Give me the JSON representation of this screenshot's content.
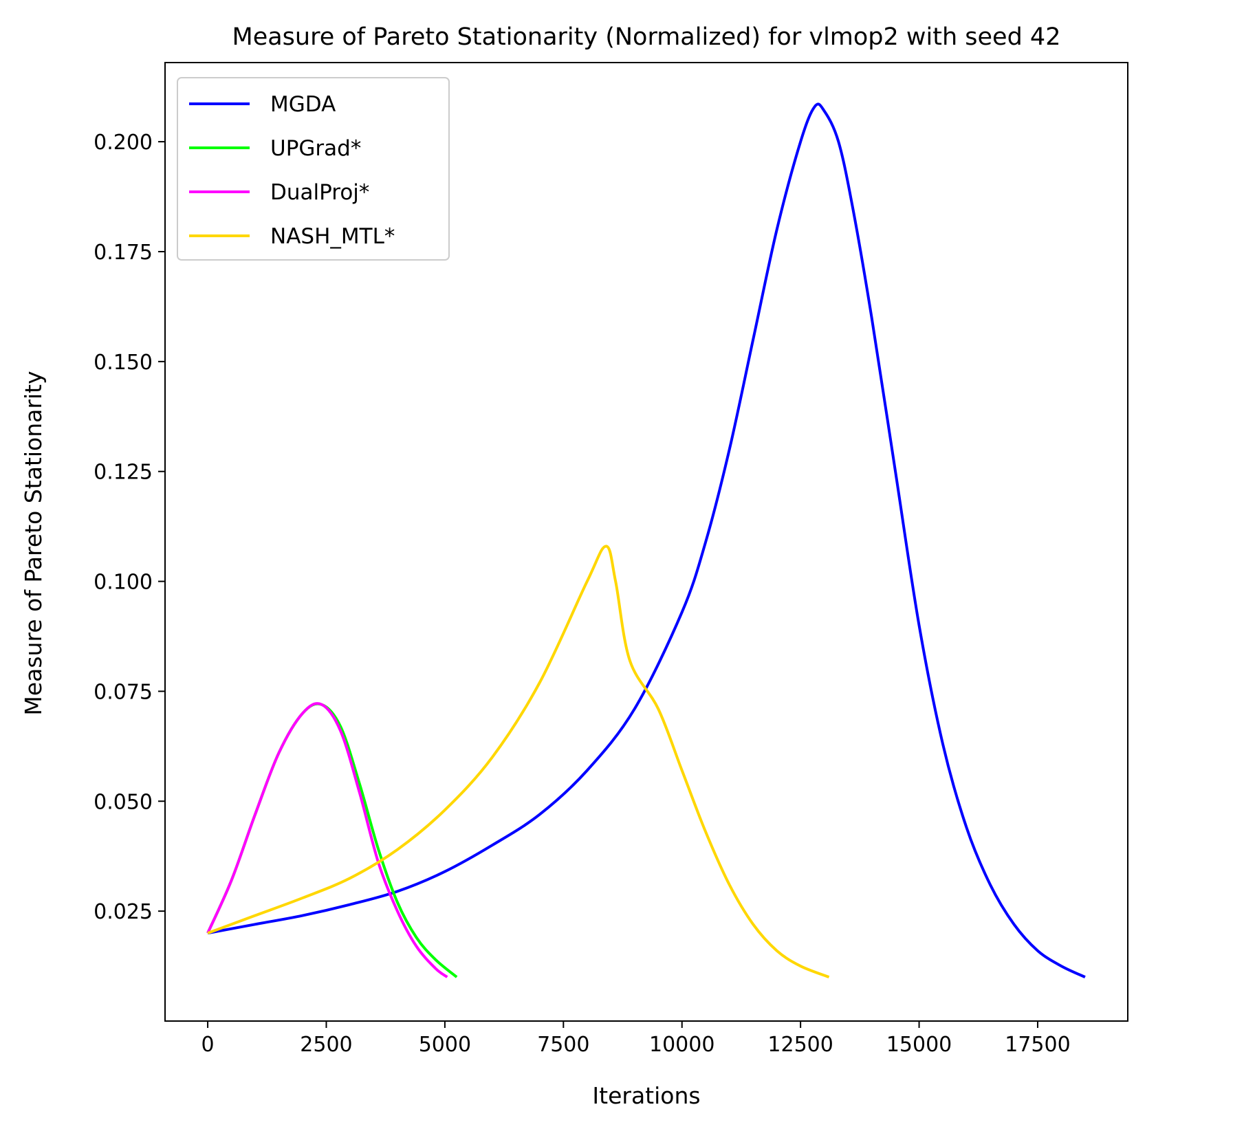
{
  "chart_data": {
    "type": "line",
    "title": "Measure of Pareto Stationarity (Normalized) for vlmop2 with seed 42",
    "xlabel": "Iterations",
    "ylabel": "Measure of Pareto Stationarity",
    "xlim": [
      -900,
      19400
    ],
    "ylim": [
      0,
      0.218
    ],
    "xticks": [
      0,
      2500,
      5000,
      7500,
      10000,
      12500,
      15000,
      17500
    ],
    "xtick_labels": [
      "0",
      "2500",
      "5000",
      "7500",
      "10000",
      "12500",
      "15000",
      "17500"
    ],
    "yticks": [
      0.025,
      0.05,
      0.075,
      0.1,
      0.125,
      0.15,
      0.175,
      0.2
    ],
    "ytick_labels": [
      "0.025",
      "0.050",
      "0.075",
      "0.100",
      "0.125",
      "0.150",
      "0.175",
      "0.200"
    ],
    "grid": false,
    "legend_position": "upper-left",
    "series": [
      {
        "name": "MGDA",
        "color": "#0000ff",
        "x": [
          0,
          1000,
          2000,
          3000,
          4000,
          5000,
          6000,
          7000,
          8000,
          9000,
          10000,
          10500,
          11000,
          11500,
          12000,
          12500,
          12800,
          13000,
          13300,
          13600,
          14000,
          14500,
          15000,
          15500,
          16000,
          16500,
          17000,
          17500,
          18000,
          18500
        ],
        "y": [
          0.02,
          0.022,
          0.024,
          0.0265,
          0.0295,
          0.034,
          0.04,
          0.047,
          0.057,
          0.071,
          0.093,
          0.109,
          0.13,
          0.155,
          0.18,
          0.2,
          0.208,
          0.207,
          0.2,
          0.185,
          0.16,
          0.125,
          0.09,
          0.063,
          0.044,
          0.031,
          0.022,
          0.016,
          0.0125,
          0.01
        ]
      },
      {
        "name": "UPGrad*",
        "color": "#00ff00",
        "x": [
          0,
          500,
          1000,
          1500,
          2000,
          2400,
          2800,
          3200,
          3600,
          4000,
          4400,
          4800,
          5250
        ],
        "y": [
          0.02,
          0.032,
          0.047,
          0.061,
          0.07,
          0.072,
          0.067,
          0.054,
          0.039,
          0.027,
          0.019,
          0.014,
          0.01
        ]
      },
      {
        "name": "DualProj*",
        "color": "#ff00ff",
        "x": [
          0,
          500,
          1000,
          1500,
          2000,
          2400,
          2800,
          3200,
          3600,
          4000,
          4400,
          4800,
          5050
        ],
        "y": [
          0.02,
          0.032,
          0.047,
          0.061,
          0.07,
          0.072,
          0.066,
          0.052,
          0.036,
          0.025,
          0.017,
          0.012,
          0.01
        ]
      },
      {
        "name": "NASH_MTL*",
        "color": "#ffd700",
        "x": [
          0,
          1000,
          2000,
          3000,
          4000,
          5000,
          6000,
          7000,
          8000,
          8400,
          8600,
          8900,
          9500,
          10000,
          10500,
          11000,
          11500,
          12000,
          12500,
          13100
        ],
        "y": [
          0.02,
          0.024,
          0.028,
          0.0325,
          0.039,
          0.048,
          0.06,
          0.077,
          0.1,
          0.108,
          0.1,
          0.082,
          0.071,
          0.057,
          0.043,
          0.031,
          0.022,
          0.016,
          0.0125,
          0.01
        ]
      }
    ]
  }
}
